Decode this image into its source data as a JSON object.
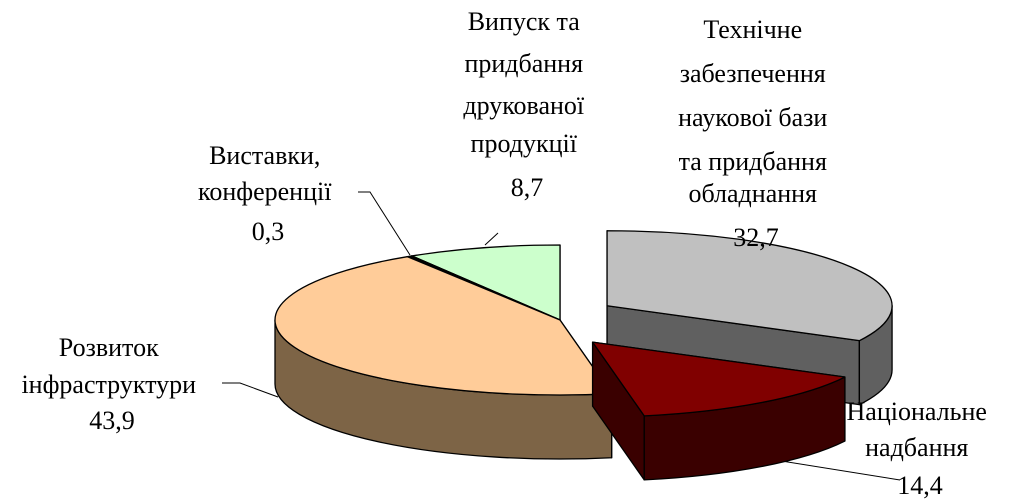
{
  "chart_data": {
    "type": "pie",
    "title": "",
    "style": "3d-exploded",
    "slices": [
      {
        "label_lines": [
          "Технічне",
          "забезпечення",
          "наукової бази",
          "та придбання",
          "обладнання"
        ],
        "value": 32.7,
        "value_text": "32,7",
        "top_color": "#c0c0c0",
        "side_color": "#606060"
      },
      {
        "label_lines": [
          "Національне",
          "надбання"
        ],
        "value": 14.4,
        "value_text": "14,4",
        "top_color": "#800000",
        "side_color": "#3a0000"
      },
      {
        "label_lines": [
          "Розвиток",
          "інфраструктури"
        ],
        "value": 43.9,
        "value_text": "43,9",
        "top_color": "#ffcc99",
        "side_color": "#7d6446"
      },
      {
        "label_lines": [
          "Виставки,",
          "конференції"
        ],
        "value": 0.3,
        "value_text": "0,3",
        "top_color": "#000000",
        "side_color": "#000000"
      },
      {
        "label_lines": [
          "Випуск та",
          "придбання",
          "друкованої",
          "продукції"
        ],
        "value": 8.7,
        "value_text": "8,7",
        "top_color": "#ccffcc",
        "side_color": "#5f7f5f"
      }
    ]
  }
}
